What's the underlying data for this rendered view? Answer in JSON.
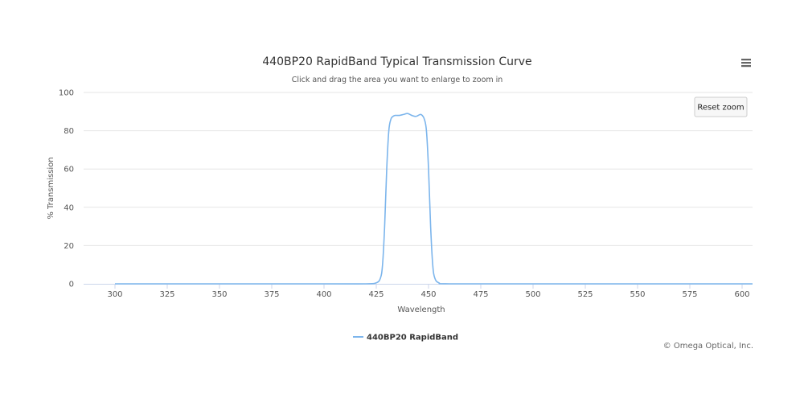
{
  "chart_data": {
    "type": "line",
    "title": "440BP20 RapidBand Typical Transmission Curve",
    "subtitle": "Click and drag the area you want to enlarge to zoom in",
    "xlabel": "Wavelength",
    "ylabel": "% Transmission",
    "xlim": [
      285,
      605
    ],
    "ylim": [
      0,
      100
    ],
    "x_ticks": [
      300,
      325,
      350,
      375,
      400,
      425,
      450,
      475,
      500,
      525,
      550,
      575,
      600
    ],
    "y_ticks": [
      0,
      20,
      40,
      60,
      80,
      100
    ],
    "grid": true,
    "legend_position": "bottom-center",
    "series": [
      {
        "name": "440BP20 RapidBand",
        "color": "#7cb5ec",
        "x": [
          300,
          400,
          420,
          425,
          427,
          428,
          429,
          430,
          431,
          432,
          433,
          434,
          436,
          438,
          440,
          442,
          444,
          446,
          447,
          448,
          449,
          450,
          451,
          452,
          453,
          455,
          460,
          500,
          605
        ],
        "y": [
          0,
          0,
          0,
          0.5,
          3,
          10,
          30,
          60,
          80,
          86,
          87.5,
          88,
          88,
          88.5,
          89,
          88,
          87.5,
          88.5,
          88,
          86,
          80,
          60,
          30,
          10,
          3,
          0.5,
          0,
          0,
          0
        ]
      }
    ]
  },
  "reset_zoom_label": "Reset zoom",
  "credits": "© Omega Optical, Inc.",
  "menu_icon": "hamburger-menu-icon"
}
